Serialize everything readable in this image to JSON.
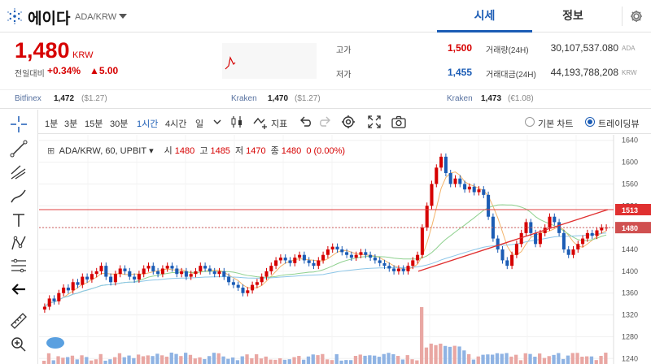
{
  "header": {
    "coin_name": "에이다",
    "pair": "ADA/KRW",
    "tabs": [
      {
        "label": "시세"
      },
      {
        "label": "정보"
      }
    ]
  },
  "quote": {
    "price": "1,480",
    "unit": "KRW",
    "change_label": "전일대비",
    "change_pct": "+0.34%",
    "change_abs": "▲5.00",
    "high_label": "고가",
    "high": "1,500",
    "low_label": "저가",
    "low": "1,455",
    "volume_label": "거래량(24H)",
    "volume": "30,107,537.080",
    "volume_unit": "ADA",
    "amount_label": "거래대금(24H)",
    "amount": "44,193,788,208",
    "amount_unit": "KRW"
  },
  "exchanges": [
    {
      "name": "Bitfinex",
      "price": "1,472",
      "sub": "($1.27)"
    },
    {
      "name": "Kraken",
      "price": "1,470",
      "sub": "($1.27)"
    },
    {
      "name": "Kraken",
      "price": "1,473",
      "sub": "(€1.08)"
    }
  ],
  "toolbar": {
    "timeframes": [
      "1분",
      "3분",
      "15분",
      "30분",
      "1시간",
      "4시간",
      "일"
    ],
    "active_timeframe": "1시간",
    "indicator_label": "지표",
    "radio_basic": "기본 차트",
    "radio_tv": "트레이딩뷰"
  },
  "legend": {
    "symbol": "ADA/KRW, 60, UPBIT",
    "open_label": "시",
    "open": "1480",
    "high_label": "고",
    "high": "1485",
    "low_label": "저",
    "low": "1470",
    "close_label": "종",
    "close": "1480",
    "change": "0 (0.00%)"
  },
  "colors": {
    "up": "#d60000",
    "down": "#1b5cb5",
    "accent": "#1b5cb5"
  },
  "chart_data": {
    "type": "candlestick",
    "y_ticks": [
      1240,
      1280,
      1320,
      1360,
      1400,
      1440,
      1480,
      1520,
      1560,
      1600,
      1640
    ],
    "ylim": [
      1230,
      1650
    ],
    "horizontal_line": 1513,
    "current_price": 1480,
    "price_labels": [
      "1513",
      "1480"
    ],
    "closes": [
      1335,
      1350,
      1345,
      1360,
      1370,
      1365,
      1380,
      1375,
      1390,
      1385,
      1395,
      1400,
      1410,
      1390,
      1380,
      1395,
      1405,
      1400,
      1390,
      1385,
      1395,
      1405,
      1410,
      1400,
      1395,
      1405,
      1410,
      1405,
      1395,
      1400,
      1390,
      1395,
      1400,
      1410,
      1405,
      1400,
      1395,
      1400,
      1390,
      1380,
      1375,
      1370,
      1360,
      1365,
      1375,
      1380,
      1390,
      1400,
      1410,
      1420,
      1425,
      1420,
      1415,
      1425,
      1430,
      1420,
      1415,
      1410,
      1420,
      1430,
      1440,
      1445,
      1440,
      1435,
      1430,
      1425,
      1430,
      1435,
      1430,
      1425,
      1420,
      1415,
      1410,
      1405,
      1400,
      1405,
      1400,
      1410,
      1420,
      1430,
      1480,
      1520,
      1560,
      1590,
      1610,
      1580,
      1560,
      1570,
      1560,
      1550,
      1555,
      1545,
      1550,
      1540,
      1500,
      1460,
      1440,
      1420,
      1410,
      1430,
      1450,
      1470,
      1490,
      1470,
      1450,
      1470,
      1480,
      1500,
      1490,
      1470,
      1440,
      1430,
      1440,
      1450,
      1460,
      1470,
      1465,
      1475,
      1480,
      1480
    ],
    "trendline_up": [
      [
        1400,
        0.66
      ],
      [
        1513,
        0.99
      ]
    ]
  }
}
